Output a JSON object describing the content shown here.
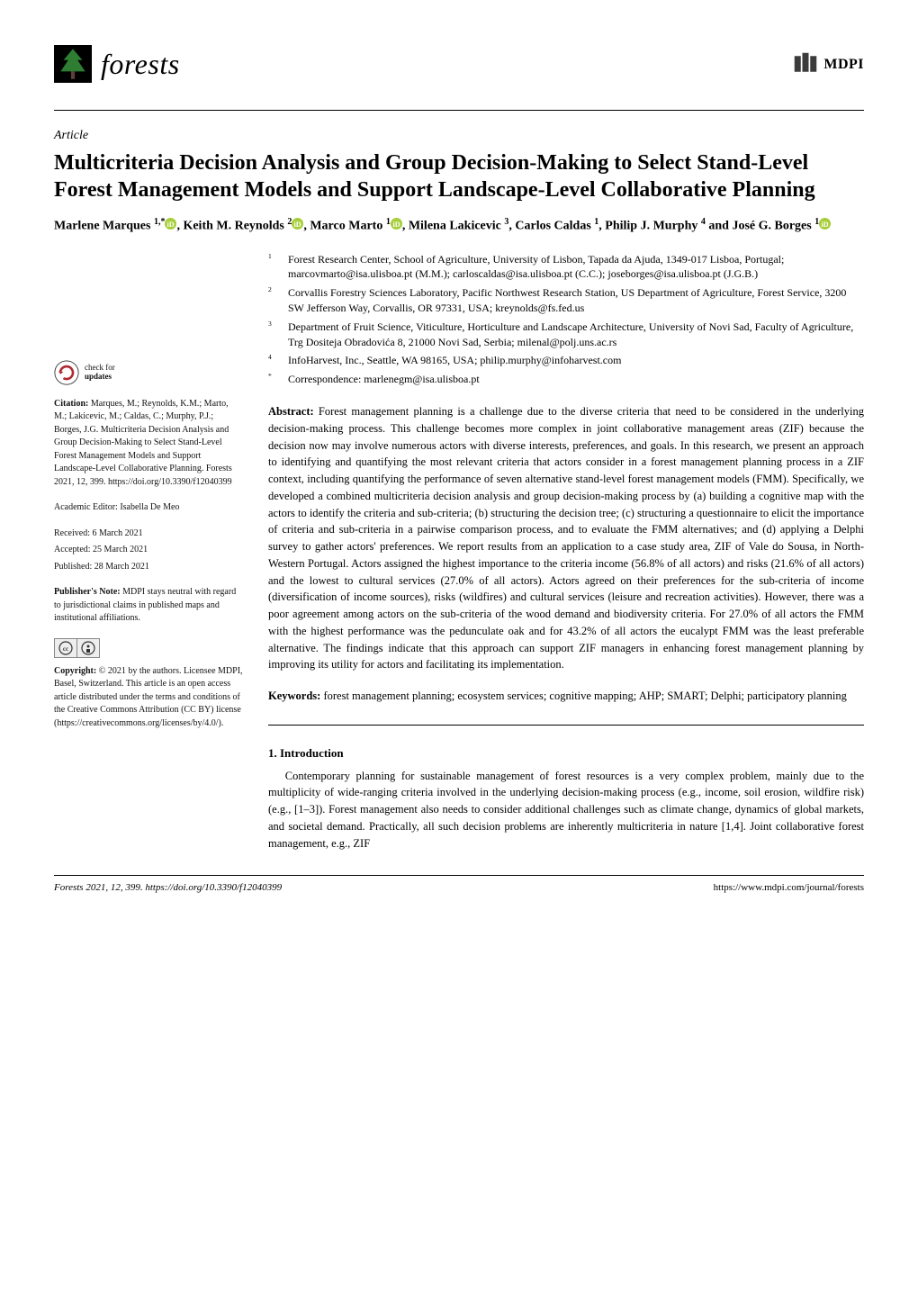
{
  "colors": {
    "text": "#000000",
    "background": "#ffffff",
    "rule": "#000000",
    "orcid_green": "#a6ce39",
    "mdpi_fill": "#3b3b3b",
    "tree_green": "#2e7d32",
    "check_arrow": "#b02a30",
    "cc_border": "#888888",
    "cc_bg": "#eeeeee"
  },
  "typography": {
    "body_family": "Palatino / serif",
    "title_size_pt": 18,
    "body_size_pt": 9.5,
    "sidebar_size_pt": 7.5
  },
  "journal": {
    "name": "forests",
    "publisher": "MDPI"
  },
  "article": {
    "type": "Article",
    "title": "Multicriteria Decision Analysis and Group Decision-Making to Select Stand-Level Forest Management Models and Support Landscape-Level Collaborative Planning",
    "authors_html_parts": [
      {
        "name": "Marlene Marques",
        "sup": "1,*",
        "orcid": true
      },
      {
        "name": "Keith M. Reynolds",
        "sup": "2",
        "orcid": true
      },
      {
        "name": "Marco Marto",
        "sup": "1",
        "orcid": true
      },
      {
        "name": "Milena Lakicevic",
        "sup": "3",
        "orcid": false
      },
      {
        "name": "Carlos Caldas",
        "sup": "1",
        "orcid": false
      },
      {
        "name": "Philip J. Murphy",
        "sup": "4",
        "orcid": false
      },
      {
        "name": "José G. Borges",
        "sup": "1",
        "orcid": true
      }
    ],
    "affiliations": [
      {
        "n": "1",
        "text": "Forest Research Center, School of Agriculture, University of Lisbon, Tapada da Ajuda, 1349-017 Lisboa, Portugal; marcovmarto@isa.ulisboa.pt (M.M.); carloscaldas@isa.ulisboa.pt (C.C.); joseborges@isa.ulisboa.pt (J.G.B.)"
      },
      {
        "n": "2",
        "text": "Corvallis Forestry Sciences Laboratory, Pacific Northwest Research Station, US Department of Agriculture, Forest Service, 3200 SW Jefferson Way, Corvallis, OR 97331, USA; kreynolds@fs.fed.us"
      },
      {
        "n": "3",
        "text": "Department of Fruit Science, Viticulture, Horticulture and Landscape Architecture, University of Novi Sad, Faculty of Agriculture, Trg Dositeja Obradovića 8, 21000 Novi Sad, Serbia; milenal@polj.uns.ac.rs"
      },
      {
        "n": "4",
        "text": "InfoHarvest, Inc., Seattle, WA 98165, USA; philip.murphy@infoharvest.com"
      },
      {
        "n": "*",
        "text": "Correspondence: marlenegm@isa.ulisboa.pt"
      }
    ],
    "abstract_label": "Abstract:",
    "abstract": "Forest management planning is a challenge due to the diverse criteria that need to be considered in the underlying decision-making process. This challenge becomes more complex in joint collaborative management areas (ZIF) because the decision now may involve numerous actors with diverse interests, preferences, and goals. In this research, we present an approach to identifying and quantifying the most relevant criteria that actors consider in a forest management planning process in a ZIF context, including quantifying the performance of seven alternative stand-level forest management models (FMM). Specifically, we developed a combined multicriteria decision analysis and group decision-making process by (a) building a cognitive map with the actors to identify the criteria and sub-criteria; (b) structuring the decision tree; (c) structuring a questionnaire to elicit the importance of criteria and sub-criteria in a pairwise comparison process, and to evaluate the FMM alternatives; and (d) applying a Delphi survey to gather actors' preferences. We report results from an application to a case study area, ZIF of Vale do Sousa, in North-Western Portugal. Actors assigned the highest importance to the criteria income (56.8% of all actors) and risks (21.6% of all actors) and the lowest to cultural services (27.0% of all actors). Actors agreed on their preferences for the sub-criteria of income (diversification of income sources), risks (wildfires) and cultural services (leisure and recreation activities). However, there was a poor agreement among actors on the sub-criteria of the wood demand and biodiversity criteria. For 27.0% of all actors the FMM with the highest performance was the pedunculate oak and for 43.2% of all actors the eucalypt FMM was the least preferable alternative. The findings indicate that this approach can support ZIF managers in enhancing forest management planning by improving its utility for actors and facilitating its implementation.",
    "keywords_label": "Keywords:",
    "keywords": "forest management planning; ecosystem services; cognitive mapping; AHP; SMART; Delphi; participatory planning"
  },
  "section1": {
    "heading": "1. Introduction",
    "paragraph": "Contemporary planning for sustainable management of forest resources is a very complex problem, mainly due to the multiplicity of wide-ranging criteria involved in the underlying decision-making process (e.g., income, soil erosion, wildfire risk) (e.g., [1–3]). Forest management also needs to consider additional challenges such as climate change, dynamics of global markets, and societal demand. Practically, all such decision problems are inherently multicriteria in nature [1,4]. Joint collaborative forest management, e.g., ZIF"
  },
  "sidebar": {
    "check_updates_top": "check for",
    "check_updates_bottom": "updates",
    "citation_head": "Citation:",
    "citation": "Marques, M.; Reynolds, K.M.; Marto, M.; Lakicevic, M.; Caldas, C.; Murphy, P.J.; Borges, J.G. Multicriteria Decision Analysis and Group Decision-Making to Select Stand-Level Forest Management Models and Support Landscape-Level Collaborative Planning. Forests 2021, 12, 399. https://doi.org/10.3390/f12040399",
    "academic_editor_head": "Academic Editor:",
    "academic_editor": "Isabella De Meo",
    "received_head": "Received:",
    "received": "6 March 2021",
    "accepted_head": "Accepted:",
    "accepted": "25 March 2021",
    "published_head": "Published:",
    "published": "28 March 2021",
    "pubnote_head": "Publisher's Note:",
    "pubnote": "MDPI stays neutral with regard to jurisdictional claims in published maps and institutional affiliations.",
    "copyright_head": "Copyright:",
    "copyright": "© 2021 by the authors. Licensee MDPI, Basel, Switzerland. This article is an open access article distributed under the terms and conditions of the Creative Commons Attribution (CC BY) license (https://creativecommons.org/licenses/by/4.0/).",
    "cc_label": "CC",
    "by_label": "BY"
  },
  "footer": {
    "left": "Forests 2021, 12, 399. https://doi.org/10.3390/f12040399",
    "right": "https://www.mdpi.com/journal/forests"
  }
}
